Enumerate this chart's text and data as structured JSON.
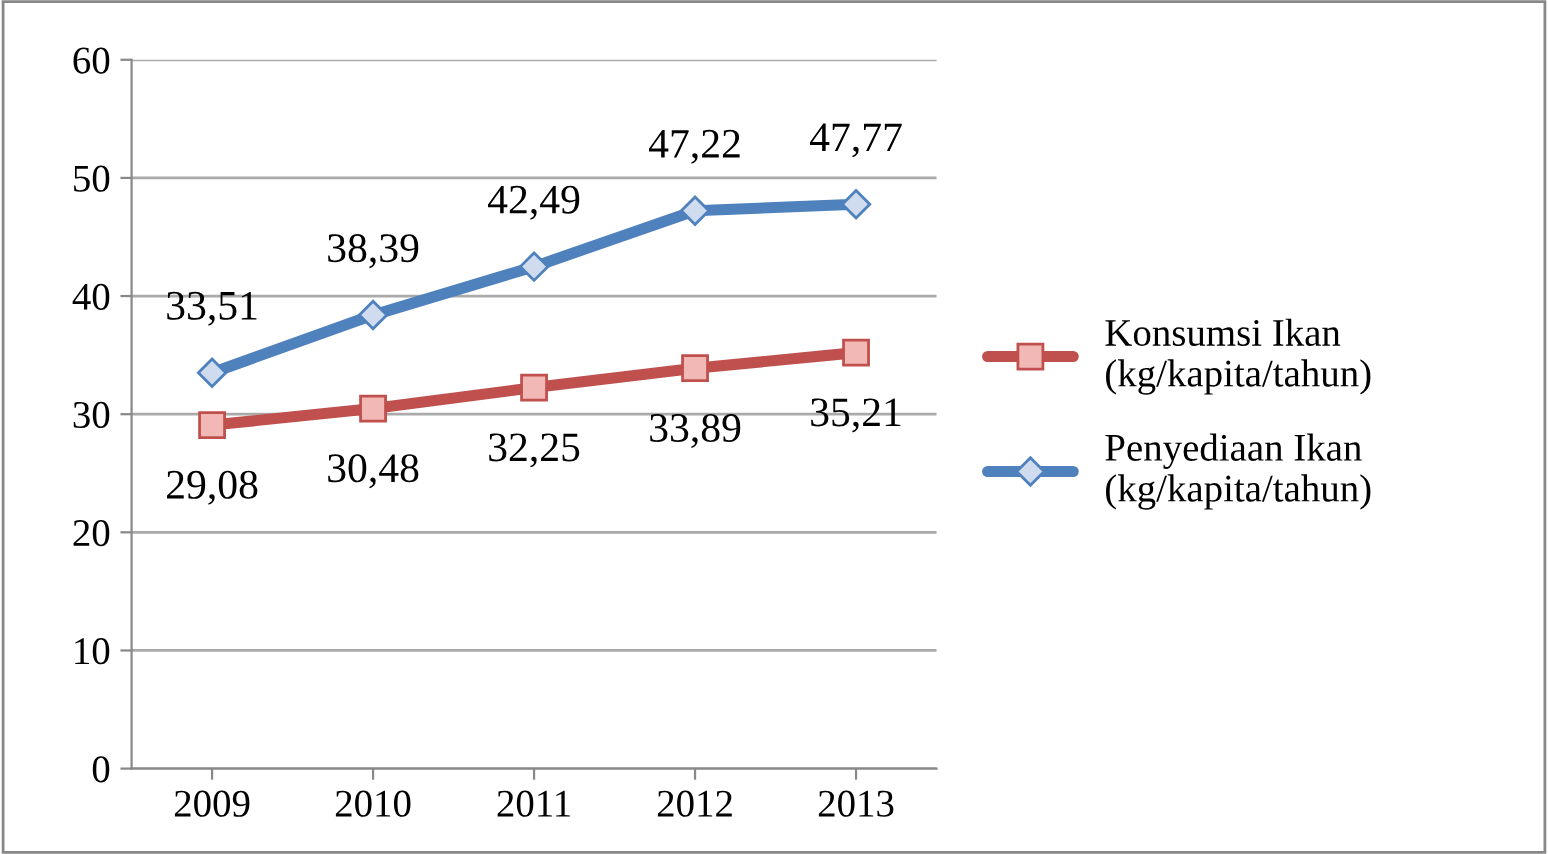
{
  "chart_data": {
    "type": "line",
    "categories": [
      "2009",
      "2010",
      "2011",
      "2012",
      "2013"
    ],
    "series": [
      {
        "name": "Konsumsi Ikan\n(kg/kapita/tahun)",
        "color": "#c0504d",
        "marker": "square",
        "values": [
          29.08,
          30.48,
          32.25,
          33.89,
          35.21
        ],
        "value_labels": [
          "29,08",
          "30,48",
          "32,25",
          "33,89",
          "35,21"
        ]
      },
      {
        "name": "Penyediaan Ikan\n(kg/kapita/tahun)",
        "color": "#4f81bd",
        "marker": "diamond",
        "values": [
          33.51,
          38.39,
          42.49,
          47.22,
          47.77
        ],
        "value_labels": [
          "33,51",
          "38,39",
          "42,49",
          "47,22",
          "47,77"
        ]
      }
    ],
    "ylim": [
      0,
      60
    ],
    "yticks": [
      0,
      10,
      20,
      30,
      40,
      50,
      60
    ],
    "grid": "y",
    "legend": "right",
    "line_style": "solid"
  }
}
